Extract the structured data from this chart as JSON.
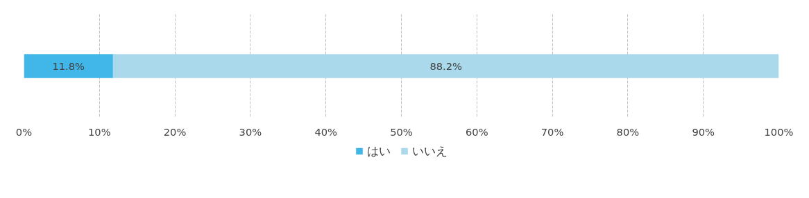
{
  "chart_data": {
    "type": "bar",
    "orientation": "horizontal",
    "stacked": true,
    "categories": [
      null
    ],
    "series": [
      {
        "name": "はい",
        "color": "#41b6e8",
        "values": [
          11.8
        ],
        "value_labels": [
          "11.8%"
        ]
      },
      {
        "name": "いいえ",
        "color": "#abd9ec",
        "values": [
          88.2
        ],
        "value_labels": [
          "88.2%"
        ]
      }
    ],
    "xlim": [
      0,
      100
    ],
    "xticks": [
      {
        "value": 0,
        "label": "0%"
      },
      {
        "value": 10,
        "label": "10%"
      },
      {
        "value": 20,
        "label": "20%"
      },
      {
        "value": 30,
        "label": "30%"
      },
      {
        "value": 40,
        "label": "40%"
      },
      {
        "value": 50,
        "label": "50%"
      },
      {
        "value": 60,
        "label": "60%"
      },
      {
        "value": 70,
        "label": "70%"
      },
      {
        "value": 80,
        "label": "80%"
      },
      {
        "value": 90,
        "label": "90%"
      },
      {
        "value": 100,
        "label": "100%"
      }
    ],
    "grid": "x",
    "legend": "bottom",
    "tick_labels": "x"
  }
}
